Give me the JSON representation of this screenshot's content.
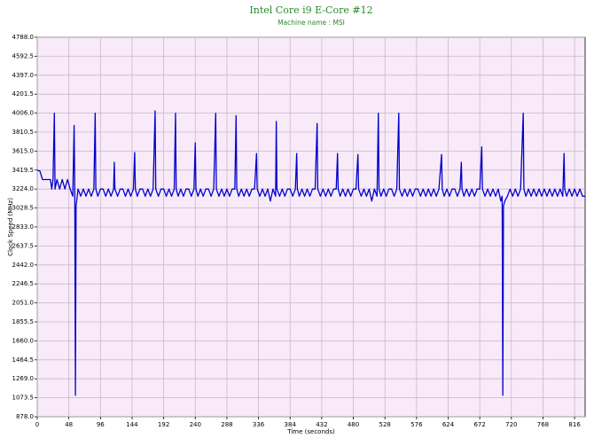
{
  "chart_data": {
    "type": "line",
    "title": "Intel Core i9 E-Core #12",
    "subtitle": "Machine name : MSI",
    "x_label": "Time (seconds)",
    "y_label": "Clock Speed (MHz)",
    "xlim": [
      0,
      832
    ],
    "ylim": [
      878,
      4788
    ],
    "xticks": [
      0,
      48,
      96,
      144,
      192,
      240,
      288,
      336,
      384,
      432,
      480,
      528,
      576,
      624,
      672,
      720,
      768,
      816
    ],
    "yticks": [
      {
        "value": 878,
        "label": "878.0"
      },
      1073.5,
      {
        "value": 1269,
        "label": "1269.0"
      },
      1464.5,
      {
        "value": 1660,
        "label": "1660.0"
      },
      1855.5,
      {
        "value": 2051,
        "label": "2051.0"
      },
      2246.5,
      {
        "value": 2442,
        "label": "2442.0"
      },
      2637.5,
      {
        "value": 2833,
        "label": "2833.0"
      },
      3028.5,
      {
        "value": 3224,
        "label": "3224.0"
      },
      3419.5,
      {
        "value": 3615,
        "label": "3615.0"
      },
      3810.5,
      {
        "value": 4006,
        "label": "4006.0"
      },
      4201.5,
      {
        "value": 4397,
        "label": "4397.0"
      },
      4592.5,
      {
        "value": 4788,
        "label": "4788.0"
      }
    ],
    "grid": true,
    "series": [
      {
        "color": "#0000cc",
        "x": [
          0,
          4,
          8,
          12,
          16,
          20,
          22,
          24,
          26,
          27,
          30,
          34,
          38,
          42,
          46,
          50,
          54,
          56,
          57,
          58,
          59,
          62,
          66,
          70,
          74,
          78,
          82,
          86,
          88,
          89,
          92,
          96,
          100,
          104,
          108,
          112,
          116,
          117,
          118,
          122,
          126,
          130,
          134,
          138,
          142,
          146,
          148,
          149,
          152,
          156,
          160,
          164,
          168,
          172,
          176,
          179,
          180,
          184,
          188,
          192,
          196,
          200,
          204,
          208,
          210,
          211,
          214,
          218,
          222,
          226,
          230,
          234,
          238,
          240,
          241,
          244,
          248,
          252,
          256,
          260,
          264,
          268,
          271,
          272,
          276,
          280,
          284,
          288,
          292,
          296,
          300,
          302,
          303,
          306,
          310,
          314,
          318,
          322,
          326,
          330,
          333,
          334,
          338,
          342,
          346,
          350,
          354,
          358,
          362,
          363,
          364,
          368,
          372,
          376,
          380,
          384,
          388,
          392,
          394,
          395,
          398,
          402,
          406,
          410,
          414,
          418,
          422,
          425,
          426,
          430,
          434,
          438,
          442,
          446,
          450,
          454,
          456,
          457,
          460,
          464,
          468,
          472,
          476,
          480,
          484,
          487,
          488,
          492,
          496,
          500,
          504,
          508,
          512,
          516,
          518,
          519,
          522,
          526,
          530,
          534,
          538,
          542,
          546,
          549,
          550,
          554,
          558,
          562,
          566,
          570,
          574,
          578,
          582,
          586,
          590,
          594,
          598,
          602,
          606,
          610,
          614,
          615,
          618,
          622,
          626,
          630,
          634,
          638,
          642,
          644,
          645,
          648,
          652,
          656,
          660,
          664,
          668,
          672,
          675,
          676,
          680,
          684,
          688,
          692,
          696,
          700,
          704,
          706,
          707,
          708,
          710,
          714,
          718,
          722,
          726,
          730,
          734,
          738,
          739,
          742,
          746,
          750,
          754,
          758,
          762,
          766,
          770,
          774,
          778,
          782,
          786,
          790,
          794,
          798,
          800,
          801,
          804,
          808,
          812,
          816,
          820,
          824,
          828,
          832
        ],
        "values": [
          3419,
          3410,
          3322,
          3322,
          3322,
          3322,
          3224,
          3322,
          4006,
          3224,
          3322,
          3224,
          3322,
          3224,
          3322,
          3224,
          3150,
          3880,
          3224,
          1100,
          3050,
          3224,
          3150,
          3224,
          3150,
          3224,
          3150,
          3224,
          4006,
          3224,
          3150,
          3224,
          3224,
          3150,
          3224,
          3150,
          3224,
          3500,
          3224,
          3150,
          3224,
          3224,
          3150,
          3224,
          3150,
          3224,
          3600,
          3224,
          3150,
          3224,
          3224,
          3150,
          3224,
          3150,
          3224,
          4030,
          3224,
          3150,
          3224,
          3224,
          3150,
          3224,
          3150,
          3224,
          4006,
          3224,
          3150,
          3224,
          3150,
          3224,
          3224,
          3150,
          3224,
          3700,
          3224,
          3150,
          3224,
          3150,
          3224,
          3224,
          3150,
          3224,
          4006,
          3224,
          3150,
          3224,
          3150,
          3224,
          3150,
          3224,
          3224,
          3980,
          3224,
          3150,
          3224,
          3150,
          3224,
          3150,
          3224,
          3224,
          3590,
          3224,
          3150,
          3224,
          3150,
          3224,
          3100,
          3224,
          3150,
          3920,
          3224,
          3150,
          3224,
          3150,
          3224,
          3224,
          3150,
          3224,
          3590,
          3224,
          3150,
          3224,
          3150,
          3224,
          3150,
          3224,
          3224,
          3900,
          3224,
          3150,
          3224,
          3150,
          3224,
          3150,
          3224,
          3224,
          3590,
          3224,
          3150,
          3224,
          3150,
          3224,
          3150,
          3224,
          3224,
          3580,
          3224,
          3150,
          3224,
          3150,
          3224,
          3100,
          3224,
          3150,
          4006,
          3224,
          3150,
          3224,
          3150,
          3224,
          3224,
          3150,
          3224,
          4006,
          3224,
          3150,
          3224,
          3150,
          3224,
          3150,
          3224,
          3224,
          3150,
          3224,
          3150,
          3224,
          3150,
          3224,
          3150,
          3224,
          3580,
          3224,
          3150,
          3224,
          3150,
          3224,
          3224,
          3150,
          3224,
          3500,
          3224,
          3150,
          3224,
          3150,
          3224,
          3150,
          3224,
          3224,
          3660,
          3224,
          3150,
          3224,
          3150,
          3224,
          3150,
          3224,
          3100,
          3150,
          1100,
          3050,
          3100,
          3150,
          3224,
          3150,
          3224,
          3150,
          3224,
          4006,
          3224,
          3150,
          3224,
          3150,
          3224,
          3150,
          3224,
          3150,
          3224,
          3150,
          3224,
          3150,
          3224,
          3150,
          3224,
          3150,
          3590,
          3224,
          3150,
          3224,
          3150,
          3224,
          3150,
          3224,
          3150,
          3150
        ]
      }
    ]
  }
}
